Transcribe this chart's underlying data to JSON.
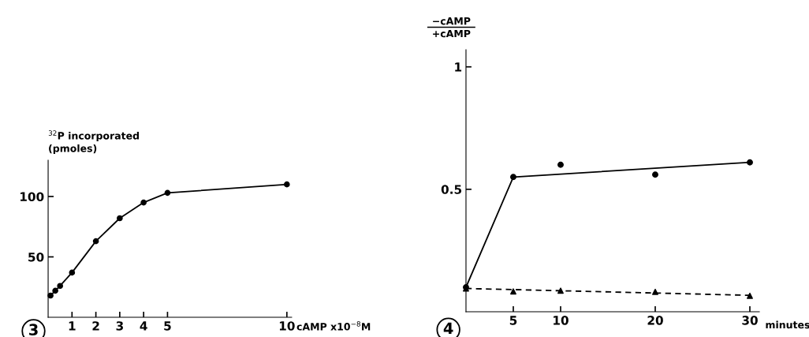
{
  "chart_data": [
    {
      "type": "line",
      "ylabel": "$^{32}$P incorporated\n(pmoles)",
      "xlabel": "cAMP x10$^{−8}$M",
      "annotations": [
        "3"
      ],
      "xlim": [
        0,
        10.2
      ],
      "ylim": [
        0,
        130
      ],
      "xticks": [
        1,
        2,
        3,
        4,
        5,
        10
      ],
      "yticks": [
        50,
        100
      ],
      "grid": false,
      "legend": false,
      "series": [
        {
          "color": "#000000",
          "marker": "circle",
          "line_style": "solid",
          "x": [
            0.1,
            0.3,
            0.5,
            1,
            2,
            3,
            4,
            5,
            10
          ],
          "values": [
            18,
            22,
            26,
            37,
            63,
            82,
            95,
            103,
            110
          ]
        }
      ]
    },
    {
      "type": "line",
      "ylabel": "−cAMP\n+cAMP",
      "xlabel": "minutes",
      "annotations": [
        "4"
      ],
      "xlim": [
        0,
        31
      ],
      "ylim": [
        0,
        1.07
      ],
      "xticks": [
        5,
        10,
        20,
        30
      ],
      "yticks": [
        0.5,
        1
      ],
      "grid": false,
      "legend": false,
      "series": [
        {
          "type": "scatter",
          "color": "#000000",
          "marker": "circle",
          "x": [
            0,
            5,
            10,
            20,
            30
          ],
          "values": [
            0.1,
            0.55,
            0.6,
            0.56,
            0.61
          ]
        },
        {
          "color": "#000000",
          "marker": "none",
          "line_style": "solid",
          "x": [
            0,
            5,
            30
          ],
          "values": [
            0.1,
            0.55,
            0.61
          ]
        },
        {
          "type": "scatter",
          "color": "#000000",
          "marker": "triangle",
          "x": [
            0,
            5,
            10,
            20,
            30
          ],
          "values": [
            0.095,
            0.083,
            0.086,
            0.081,
            0.065
          ]
        },
        {
          "color": "#000000",
          "marker": "none",
          "line_style": "dashed",
          "x": [
            0,
            30
          ],
          "values": [
            0.095,
            0.067
          ]
        }
      ]
    }
  ]
}
